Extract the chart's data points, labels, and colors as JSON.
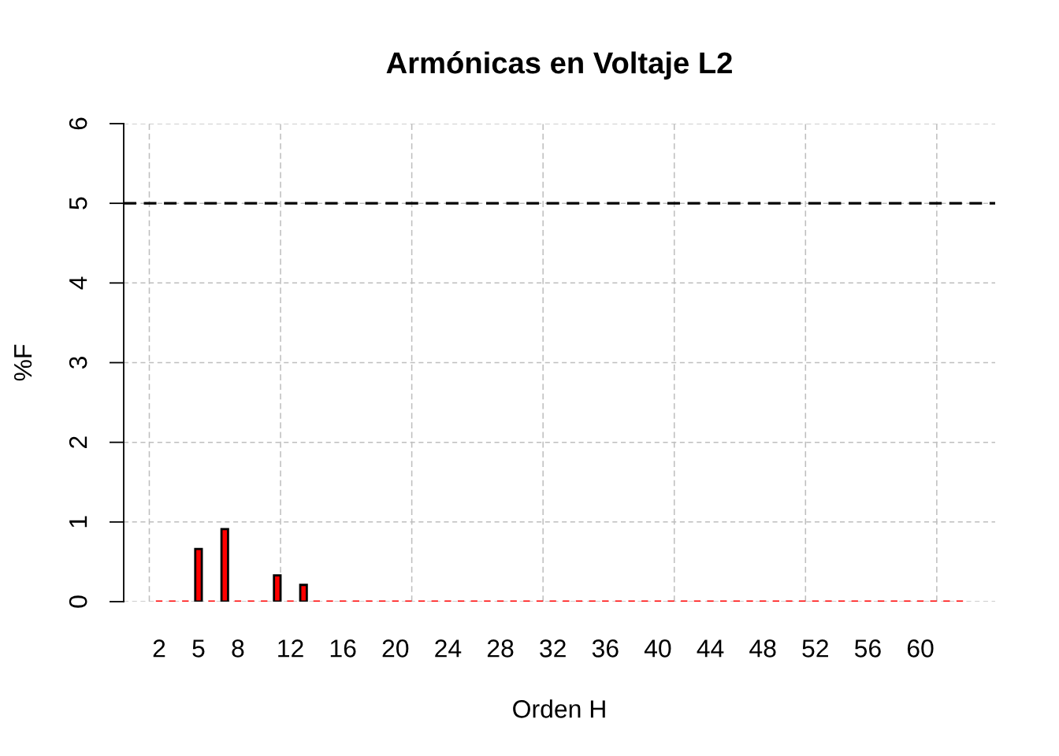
{
  "chart_data": {
    "type": "bar",
    "title": "Armónicas en Voltaje L2",
    "xlabel": "Orden H",
    "ylabel": "%F",
    "x": [
      2,
      3,
      4,
      5,
      6,
      7,
      8,
      9,
      10,
      11,
      12,
      13,
      14,
      15,
      16,
      17,
      18,
      19,
      20,
      21,
      22,
      23,
      24,
      25,
      26,
      27,
      28,
      29,
      30,
      31,
      32,
      33,
      34,
      35,
      36,
      37,
      38,
      39,
      40,
      41,
      42,
      43,
      44,
      45,
      46,
      47,
      48,
      49,
      50,
      51,
      52,
      53,
      54,
      55,
      56,
      57,
      58,
      59,
      60,
      61,
      62,
      63
    ],
    "values": [
      0,
      0,
      0,
      0.66,
      0,
      0.91,
      0,
      0,
      0,
      0.33,
      0,
      0.21,
      0,
      0,
      0,
      0,
      0,
      0,
      0,
      0,
      0,
      0,
      0,
      0,
      0,
      0,
      0,
      0,
      0,
      0,
      0,
      0,
      0,
      0,
      0,
      0,
      0,
      0,
      0,
      0,
      0,
      0,
      0,
      0,
      0,
      0,
      0,
      0,
      0,
      0,
      0,
      0,
      0,
      0,
      0,
      0,
      0,
      0,
      0,
      0,
      0,
      0
    ],
    "color": "#ff0000",
    "xlim": [
      -0.7,
      65.7
    ],
    "ylim": [
      0,
      6
    ],
    "xticks": [
      2,
      5,
      8,
      12,
      16,
      20,
      24,
      28,
      32,
      36,
      40,
      44,
      48,
      52,
      56,
      60
    ],
    "yticks": [
      0,
      1,
      2,
      3,
      4,
      5,
      6
    ],
    "grid": "y",
    "ref_lines": [
      {
        "axis": "y",
        "value": 5,
        "color": "#000000",
        "line_style": "dashed"
      },
      {
        "axis": "x",
        "value": 1.25,
        "color": "#bebebe",
        "line_style": "dashed"
      },
      {
        "axis": "x",
        "value": 11.25,
        "color": "#bebebe",
        "line_style": "dashed"
      },
      {
        "axis": "x",
        "value": 21.25,
        "color": "#bebebe",
        "line_style": "dashed"
      },
      {
        "axis": "x",
        "value": 31.25,
        "color": "#bebebe",
        "line_style": "dashed"
      },
      {
        "axis": "x",
        "value": 41.25,
        "color": "#bebebe",
        "line_style": "dashed"
      },
      {
        "axis": "x",
        "value": 51.25,
        "color": "#bebebe",
        "line_style": "dashed"
      },
      {
        "axis": "x",
        "value": 61.25,
        "color": "#bebebe",
        "line_style": "dashed"
      }
    ]
  }
}
